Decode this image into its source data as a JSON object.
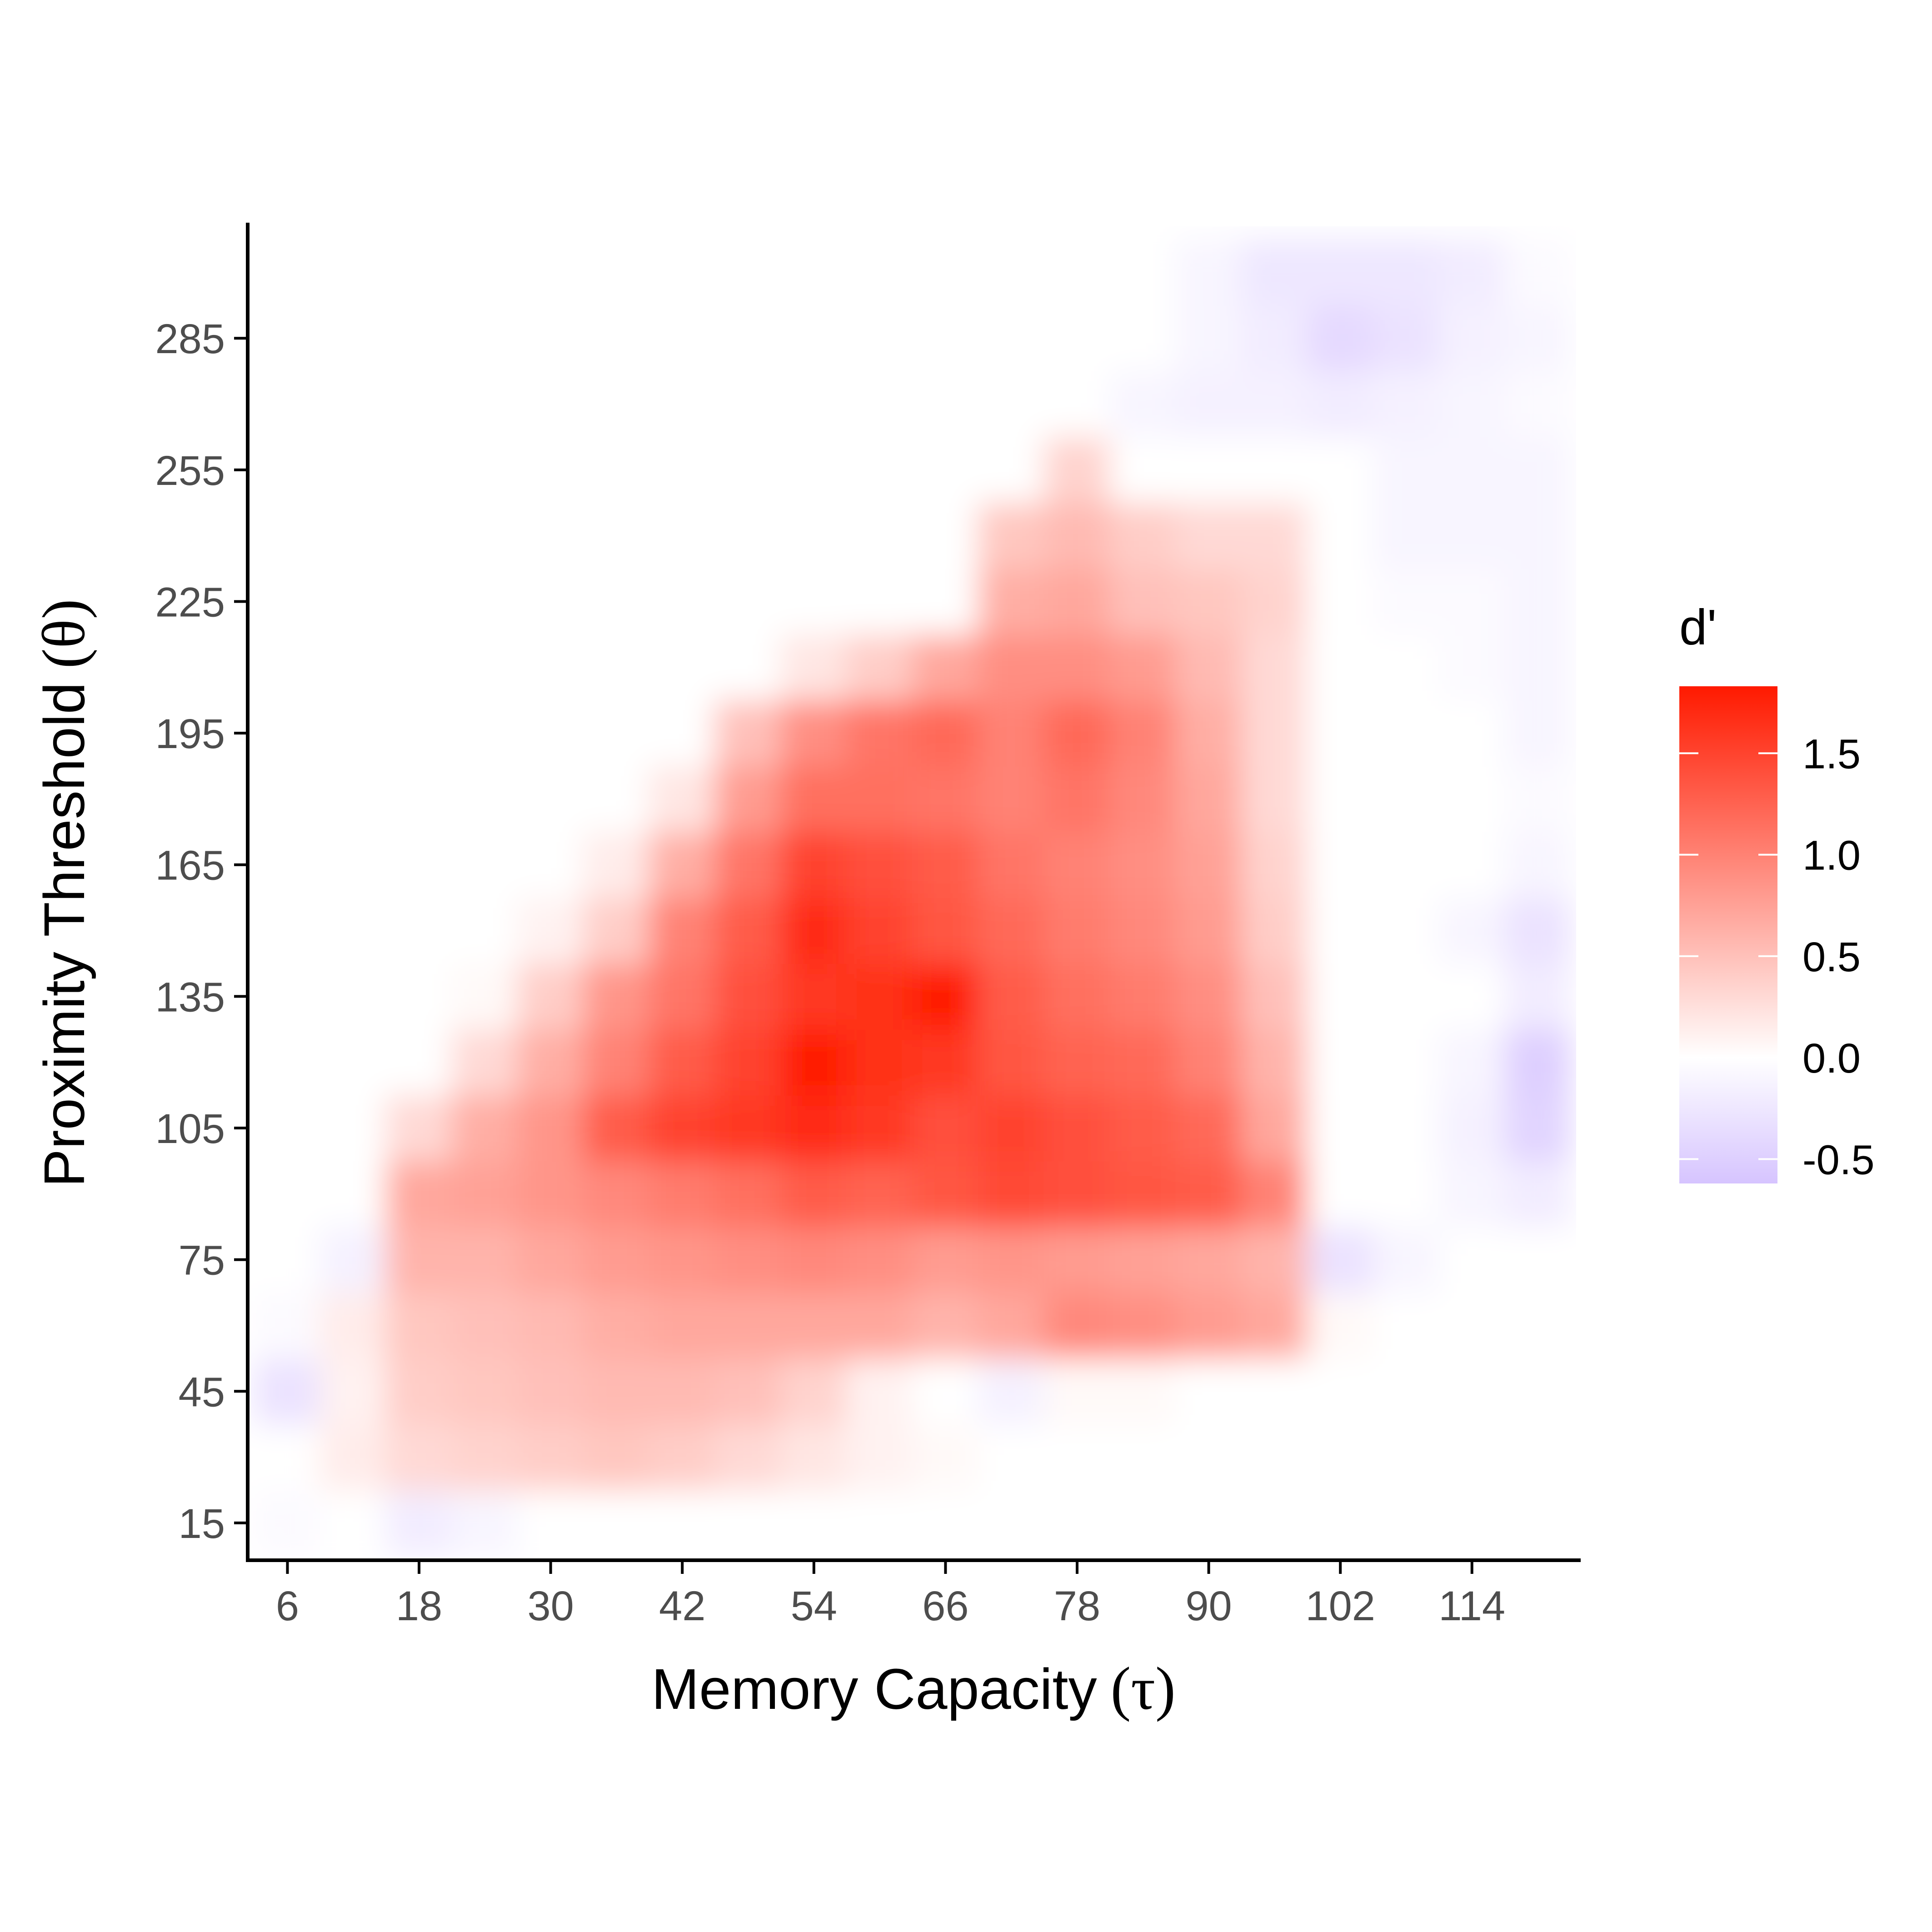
{
  "chart_data": {
    "type": "heatmap",
    "xlabel_text": "Memory Capacity",
    "xlabel_symbol": "(τ)",
    "ylabel_text": "Proximity Threshold",
    "ylabel_symbol": "(θ)",
    "x_ticks": [
      6,
      18,
      30,
      42,
      54,
      66,
      78,
      90,
      102,
      114
    ],
    "y_ticks": [
      15,
      45,
      75,
      105,
      135,
      165,
      195,
      225,
      255,
      285
    ],
    "x_tick_labels": [
      "6",
      "18",
      "30",
      "42",
      "54",
      "66",
      "78",
      "90",
      "102",
      "114"
    ],
    "y_tick_labels": [
      "15",
      "45",
      "75",
      "105",
      "135",
      "165",
      "195",
      "225",
      "255",
      "285"
    ],
    "xlim": [
      2.5,
      123.5
    ],
    "ylim": [
      6.5,
      310.5
    ],
    "x_values": [
      6,
      12,
      18,
      24,
      30,
      36,
      42,
      48,
      54,
      60,
      66,
      72,
      78,
      84,
      90,
      96,
      102,
      108,
      114,
      120
    ],
    "y_values": [
      15,
      30,
      45,
      60,
      75,
      90,
      105,
      120,
      135,
      150,
      165,
      180,
      195,
      210,
      225,
      240,
      255,
      270,
      285,
      300
    ],
    "z": [
      [
        -0.05,
        0.0,
        -0.2,
        -0.1,
        0.0,
        0.0,
        0.0,
        0.0,
        0.0,
        0.0,
        0.0,
        0.0,
        0.0,
        0.0,
        0.0,
        0.0,
        0.0,
        0.0,
        0.0,
        0.0
      ],
      [
        0.0,
        0.15,
        0.3,
        0.35,
        0.4,
        0.45,
        0.4,
        0.3,
        0.2,
        0.1,
        0.05,
        0.0,
        0.0,
        0.0,
        0.0,
        0.0,
        0.0,
        0.0,
        0.0,
        0.0
      ],
      [
        -0.3,
        0.1,
        0.4,
        0.45,
        0.5,
        0.55,
        0.55,
        0.5,
        0.35,
        0.1,
        0.0,
        -0.15,
        0.05,
        0.05,
        0.0,
        0.0,
        0.0,
        0.0,
        0.0,
        0.0
      ],
      [
        -0.05,
        0.15,
        0.45,
        0.5,
        0.55,
        0.65,
        0.7,
        0.7,
        0.7,
        0.7,
        0.6,
        0.7,
        0.95,
        0.9,
        0.8,
        0.7,
        0.05,
        0.0,
        0.0,
        0.0
      ],
      [
        0.0,
        -0.15,
        0.6,
        0.6,
        0.7,
        0.8,
        0.85,
        0.9,
        0.95,
        0.9,
        0.8,
        0.85,
        0.8,
        0.75,
        0.7,
        0.6,
        -0.3,
        -0.1,
        0.0,
        0.0
      ],
      [
        0.0,
        0.0,
        0.7,
        0.75,
        0.85,
        0.95,
        1.05,
        1.15,
        1.3,
        1.25,
        1.35,
        1.45,
        1.4,
        1.35,
        1.3,
        1.0,
        0.0,
        0.0,
        -0.1,
        -0.2
      ],
      [
        0.0,
        0.0,
        0.3,
        0.65,
        0.85,
        1.3,
        1.5,
        1.6,
        1.7,
        1.6,
        1.4,
        1.5,
        1.4,
        1.3,
        1.2,
        0.7,
        0.0,
        0.0,
        -0.15,
        -0.45
      ],
      [
        0.0,
        0.0,
        0.0,
        0.3,
        0.65,
        1.0,
        1.3,
        1.5,
        1.8,
        1.65,
        1.6,
        1.35,
        1.25,
        1.2,
        1.0,
        0.6,
        0.0,
        0.0,
        -0.1,
        -0.5
      ],
      [
        0.0,
        0.0,
        0.0,
        0.05,
        0.4,
        0.85,
        1.1,
        1.4,
        1.6,
        1.65,
        1.8,
        1.3,
        1.15,
        1.05,
        0.9,
        0.5,
        0.0,
        0.0,
        0.0,
        -0.2
      ],
      [
        0.0,
        0.0,
        0.0,
        0.0,
        0.1,
        0.4,
        1.0,
        1.3,
        1.7,
        1.5,
        1.35,
        1.2,
        1.05,
        0.95,
        0.8,
        0.4,
        0.0,
        0.0,
        -0.1,
        -0.3
      ],
      [
        0.0,
        0.0,
        0.0,
        0.0,
        0.0,
        0.15,
        0.65,
        1.1,
        1.5,
        1.4,
        1.3,
        1.1,
        1.0,
        0.9,
        0.75,
        0.35,
        0.0,
        0.0,
        0.0,
        -0.1
      ],
      [
        0.0,
        0.0,
        0.0,
        0.0,
        0.0,
        0.0,
        0.2,
        0.8,
        1.15,
        1.15,
        1.1,
        1.0,
        1.1,
        0.95,
        0.7,
        0.3,
        0.0,
        0.0,
        0.0,
        -0.05
      ],
      [
        0.0,
        0.0,
        0.0,
        0.0,
        0.0,
        0.0,
        0.0,
        0.5,
        0.9,
        1.1,
        1.2,
        1.0,
        1.2,
        1.0,
        0.65,
        0.3,
        0.0,
        0.0,
        0.0,
        -0.1
      ],
      [
        0.0,
        0.0,
        0.0,
        0.0,
        0.0,
        0.0,
        0.0,
        0.0,
        0.2,
        0.4,
        0.7,
        0.9,
        0.9,
        0.8,
        0.55,
        0.3,
        0.0,
        0.0,
        -0.05,
        -0.1
      ],
      [
        0.0,
        0.0,
        0.0,
        0.0,
        0.0,
        0.0,
        0.0,
        0.0,
        0.0,
        0.0,
        0.0,
        0.65,
        0.7,
        0.5,
        0.45,
        0.35,
        0.0,
        -0.05,
        -0.05,
        -0.1
      ],
      [
        0.0,
        0.0,
        0.0,
        0.0,
        0.0,
        0.0,
        0.0,
        0.0,
        0.0,
        0.0,
        0.0,
        0.45,
        0.55,
        0.4,
        0.3,
        0.3,
        0.0,
        -0.1,
        -0.1,
        -0.1
      ],
      [
        0.0,
        0.0,
        0.0,
        0.0,
        0.0,
        0.0,
        0.0,
        0.0,
        0.0,
        0.0,
        0.0,
        0.0,
        0.35,
        0.0,
        0.0,
        0.0,
        0.0,
        -0.1,
        -0.1,
        -0.1
      ],
      [
        0.0,
        0.0,
        0.0,
        0.0,
        0.0,
        0.0,
        0.0,
        0.0,
        0.0,
        0.0,
        0.0,
        0.0,
        0.0,
        -0.1,
        -0.15,
        -0.15,
        -0.2,
        -0.15,
        -0.1,
        -0.05
      ],
      [
        0.0,
        0.0,
        0.0,
        0.0,
        0.0,
        0.0,
        0.0,
        0.0,
        0.0,
        0.0,
        0.0,
        0.0,
        0.0,
        0.0,
        -0.1,
        -0.2,
        -0.4,
        -0.3,
        -0.15,
        -0.1
      ],
      [
        0.0,
        0.0,
        0.0,
        0.0,
        0.0,
        0.0,
        0.0,
        0.0,
        0.0,
        0.0,
        0.0,
        0.0,
        0.0,
        0.0,
        -0.1,
        -0.25,
        -0.25,
        -0.25,
        -0.2,
        -0.05
      ]
    ],
    "legend": {
      "title": "d'",
      "position": "right",
      "breaks": [
        1.5,
        1.0,
        0.5,
        0.0,
        -0.5
      ],
      "labels": [
        "1.5",
        "1.0",
        "0.5",
        "0.0",
        "-0.5"
      ],
      "range": [
        -0.62,
        1.83
      ]
    },
    "colors": {
      "low": "#d6c4ff",
      "mid": "#ffffff",
      "high": "#ff1a00"
    },
    "grid": false
  }
}
